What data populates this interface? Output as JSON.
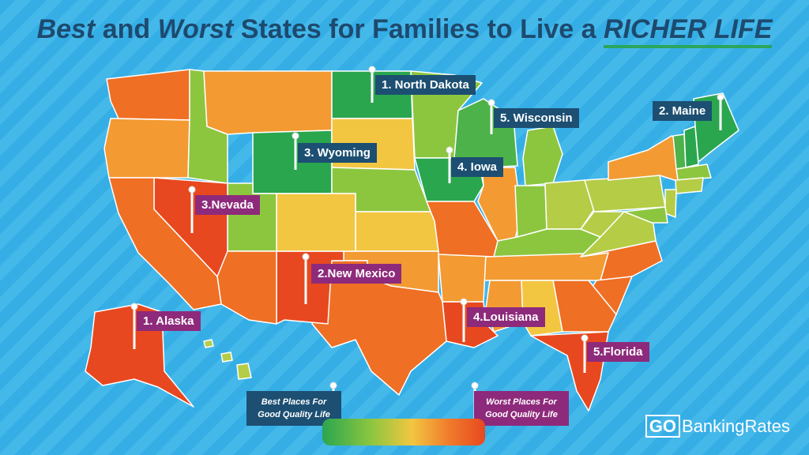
{
  "title": {
    "part1": "Best",
    "part2": " and ",
    "part3": "Worst",
    "part4": " States for Families to Live a ",
    "part5": "RICHER LIFE"
  },
  "colors": {
    "dark_green": "#2aa64f",
    "green": "#4db24a",
    "light_green": "#8cc63f",
    "yellow_green": "#b5cc47",
    "yellow": "#f2c641",
    "orange": "#f39a32",
    "dark_orange": "#ef6f24",
    "red_orange": "#e8481f",
    "best_label_bg": "#1c4f72",
    "worst_label_bg": "#8e2a7b"
  },
  "best_labels": [
    {
      "text": "1. North Dakota"
    },
    {
      "text": "2. Maine"
    },
    {
      "text": "3. Wyoming"
    },
    {
      "text": "4. Iowa"
    },
    {
      "text": "5. Wisconsin"
    }
  ],
  "worst_labels": [
    {
      "text": "1. Alaska"
    },
    {
      "text": "2.New Mexico"
    },
    {
      "text": "3.Nevada"
    },
    {
      "text": "4.Louisiana"
    },
    {
      "text": "5.Florida"
    }
  ],
  "legend": {
    "best_line1": "Best Places For",
    "best_line2": "Good Quality Life",
    "worst_line1": "Worst Places For",
    "worst_line2": "Good Quality Life"
  },
  "logo": {
    "go": "GO",
    "rest": "BankingRates"
  }
}
